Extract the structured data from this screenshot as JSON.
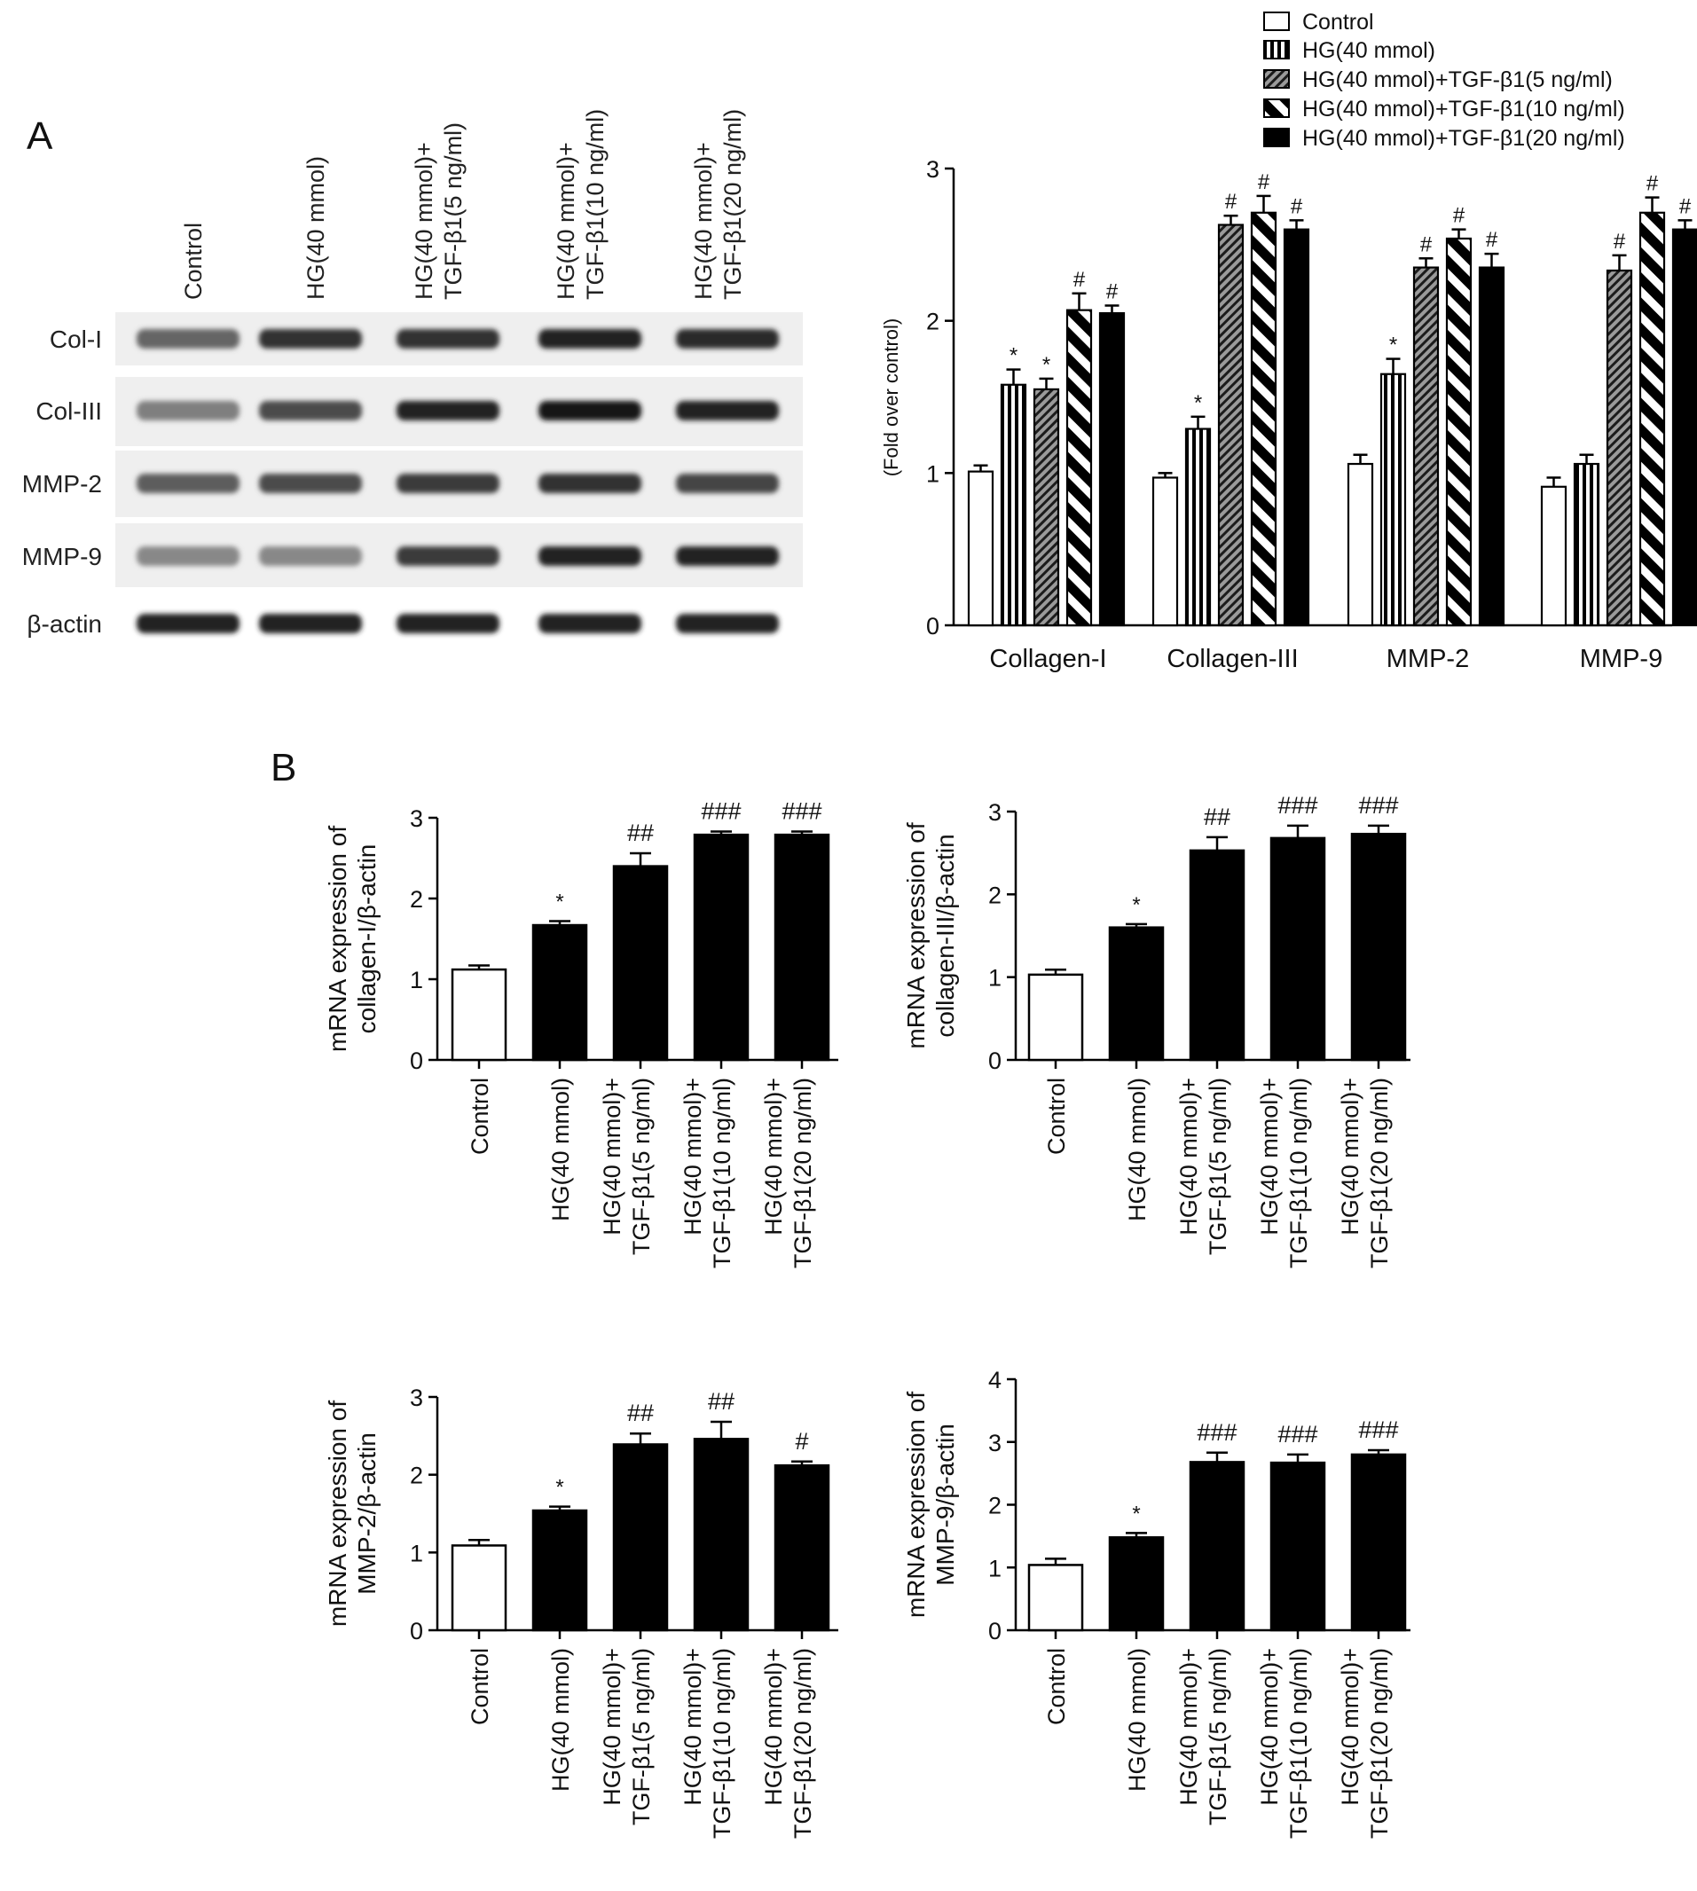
{
  "panel_a": {
    "label": "A",
    "lanes": [
      "Control",
      "HG(40 mmol)",
      "HG(40 mmol)+\nTGF-β1(5 ng/ml)",
      "HG(40 mmol)+\nTGF-β1(10 ng/ml)",
      "HG(40 mmol)+\nTGF-β1(20 ng/ml)"
    ],
    "rows": [
      "Col-I",
      "Col-III",
      "MMP-2",
      "MMP-9",
      "β-actin"
    ],
    "band_intensity": [
      [
        0.55,
        0.85,
        0.85,
        0.95,
        0.9
      ],
      [
        0.4,
        0.7,
        0.95,
        1.0,
        0.95
      ],
      [
        0.6,
        0.7,
        0.8,
        0.85,
        0.75
      ],
      [
        0.35,
        0.35,
        0.8,
        0.95,
        0.95
      ],
      [
        0.95,
        0.95,
        0.95,
        0.95,
        0.95
      ]
    ]
  },
  "panel_b": {
    "label": "B"
  },
  "chart_data": [
    {
      "type": "bar",
      "ylabel": "(Fold over control)",
      "ylim": [
        0,
        3
      ],
      "yticks": [
        "0",
        "1",
        "2",
        "3"
      ],
      "categories": [
        "Collagen-I",
        "Collagen-III",
        "MMP-2",
        "MMP-9"
      ],
      "legend_position": "top-right",
      "series": [
        {
          "name": "Control",
          "values": [
            1.01,
            0.97,
            1.06,
            0.91
          ],
          "errors": [
            0.04,
            0.03,
            0.06,
            0.06
          ],
          "marks": [
            "",
            "",
            "",
            ""
          ]
        },
        {
          "name": "HG(40  mmol)",
          "values": [
            1.58,
            1.29,
            1.65,
            1.06
          ],
          "errors": [
            0.1,
            0.08,
            0.1,
            0.06
          ],
          "marks": [
            "*",
            "*",
            "*",
            ""
          ]
        },
        {
          "name": "HG(40 mmol)+TGF-β1(5 ng/ml)",
          "values": [
            1.55,
            2.63,
            2.35,
            2.33
          ],
          "errors": [
            0.07,
            0.06,
            0.06,
            0.1
          ],
          "marks": [
            "*",
            "#",
            "#",
            "#"
          ]
        },
        {
          "name": "HG(40 mmol)+TGF-β1(10 ng/ml)",
          "values": [
            2.07,
            2.71,
            2.54,
            2.71
          ],
          "errors": [
            0.11,
            0.11,
            0.06,
            0.1
          ],
          "marks": [
            "#",
            "#",
            "#",
            "#"
          ]
        },
        {
          "name": "HG(40 mmol)+TGF-β1(20 ng/ml)",
          "values": [
            2.05,
            2.6,
            2.35,
            2.6
          ],
          "errors": [
            0.05,
            0.06,
            0.09,
            0.06
          ],
          "marks": [
            "#",
            "#",
            "#",
            "#"
          ]
        }
      ]
    },
    {
      "type": "bar",
      "ylabel": "mRNA expression of\ncollagen-I/β-actin",
      "ylim": [
        0,
        3
      ],
      "yticks": [
        "0",
        "1",
        "2",
        "3"
      ],
      "categories": [
        "Control",
        "HG(40 mmol)",
        "HG(40 mmol)+\nTGF-β1(5 ng/ml)",
        "HG(40 mmol)+\nTGF-β1(10 ng/ml)",
        "HG(40 mmol)+\nTGF-β1(20 ng/ml)"
      ],
      "values": [
        1.12,
        1.67,
        2.4,
        2.79,
        2.79
      ],
      "errors": [
        0.05,
        0.05,
        0.16,
        0.04,
        0.04
      ],
      "marks": [
        "",
        "*",
        "##",
        "###",
        "###"
      ]
    },
    {
      "type": "bar",
      "ylabel": "mRNA expression of\ncollagen-III/β-actin",
      "ylim": [
        0,
        3
      ],
      "yticks": [
        "0",
        "1",
        "2",
        "3"
      ],
      "categories": [
        "Control",
        "HG(40 mmol)",
        "HG(40 mmol)+\nTGF-β1(5 ng/ml)",
        "HG(40 mmol)+\nTGF-β1(10 ng/ml)",
        "HG(40 mmol)+\nTGF-β1(20 ng/ml)"
      ],
      "values": [
        1.03,
        1.6,
        2.53,
        2.68,
        2.73
      ],
      "errors": [
        0.06,
        0.04,
        0.16,
        0.15,
        0.1
      ],
      "marks": [
        "",
        "*",
        "##",
        "###",
        "###"
      ]
    },
    {
      "type": "bar",
      "ylabel": "mRNA expression of\nMMP-2/β-actin",
      "ylim": [
        0,
        3
      ],
      "yticks": [
        "0",
        "1",
        "2",
        "3"
      ],
      "categories": [
        "Control",
        "HG(40 mmol)",
        "HG(40 mmol)+\nTGF-β1(5 ng/ml)",
        "HG(40 mmol)+\nTGF-β1(10 ng/ml)",
        "HG(40 mmol)+\nTGF-β1(20 ng/ml)"
      ],
      "values": [
        1.09,
        1.54,
        2.39,
        2.46,
        2.12
      ],
      "errors": [
        0.07,
        0.05,
        0.14,
        0.22,
        0.05
      ],
      "marks": [
        "",
        "*",
        "##",
        "##",
        "#"
      ]
    },
    {
      "type": "bar",
      "ylabel": "mRNA expression of\nMMP-9/β-actin",
      "ylim": [
        0,
        4
      ],
      "yticks": [
        "0",
        "1",
        "2",
        "3",
        "4"
      ],
      "categories": [
        "Control",
        "HG(40 mmol)",
        "HG(40 mmol)+\nTGF-β1(5 ng/ml)",
        "HG(40 mmol)+\nTGF-β1(10 ng/ml)",
        "HG(40 mmol)+\nTGF-β1(20 ng/ml)"
      ],
      "values": [
        1.04,
        1.48,
        2.68,
        2.67,
        2.8
      ],
      "errors": [
        0.1,
        0.07,
        0.15,
        0.13,
        0.07
      ],
      "marks": [
        "",
        "*",
        "###",
        "###",
        "###"
      ]
    }
  ]
}
